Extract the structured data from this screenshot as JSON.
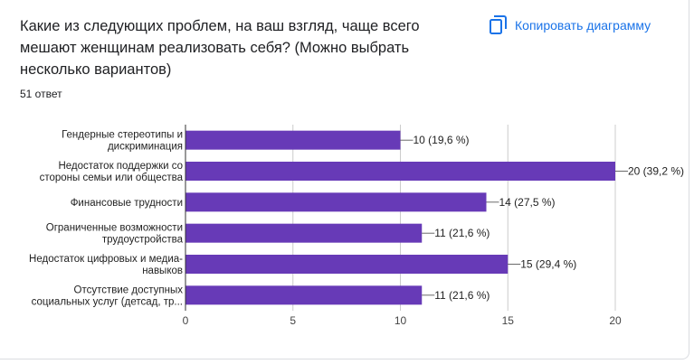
{
  "question": {
    "title": "Какие из следующих проблем, на ваш взгляд, чаще всего мешают женщинам реализовать себя? (Можно выбрать несколько вариантов)",
    "responses": "51 ответ"
  },
  "toolbar": {
    "copy_label": "Копировать диаграмму",
    "copy_icon": "copy-icon"
  },
  "colors": {
    "bar": "#673ab7",
    "grid": "#cccccc",
    "text": "#222222",
    "accent": "#1a73e8"
  },
  "chart_data": {
    "type": "bar",
    "orientation": "horizontal",
    "categories": [
      [
        "Гендерные стереотипы и",
        "дискриминация"
      ],
      [
        "Недостаток поддержки со",
        "стороны семьи или общества"
      ],
      [
        "Финансовые трудности"
      ],
      [
        "Ограниченные возможности",
        "трудоустройства"
      ],
      [
        "Недостаток цифровых и медиа-",
        "навыков"
      ],
      [
        "Отсутствие доступных",
        "социальных услуг (детсад, тр..."
      ]
    ],
    "values": [
      10,
      20,
      14,
      11,
      15,
      11
    ],
    "data_labels": [
      "10 (19,6 %)",
      "20 (39,2 %)",
      "14 (27,5 %)",
      "11 (21,6 %)",
      "15 (29,4 %)",
      "11 (21,6 %)"
    ],
    "xticks": [
      0,
      5,
      10,
      15,
      20
    ],
    "xlim": [
      0,
      20
    ],
    "grid": true,
    "legend": "none"
  }
}
